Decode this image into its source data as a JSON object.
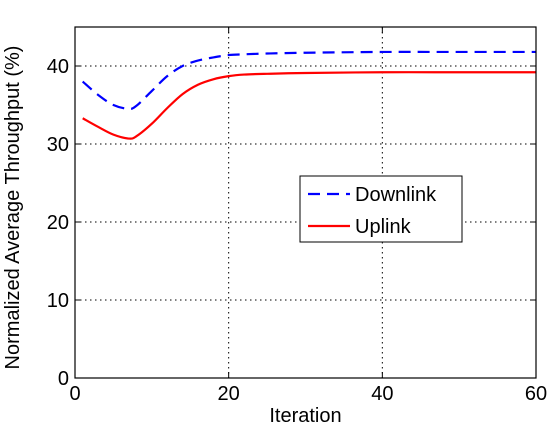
{
  "chart_data": {
    "type": "line",
    "title": "",
    "xlabel": "Iteration",
    "ylabel": "Normalized Average Throughput (%)",
    "xlim": [
      0,
      60
    ],
    "ylim": [
      0,
      45
    ],
    "xticks": [
      0,
      20,
      40,
      60
    ],
    "yticks": [
      0,
      10,
      20,
      30,
      40
    ],
    "grid": true,
    "legend_position": "center-right",
    "series": [
      {
        "name": "Downlink",
        "color": "#0000ff",
        "line_style": "dashed",
        "x": [
          1,
          3,
          5,
          7,
          8,
          10,
          12,
          14,
          16,
          18,
          20,
          22,
          25,
          30,
          40,
          50,
          60
        ],
        "y": [
          38.0,
          36.3,
          35.0,
          34.5,
          34.9,
          36.8,
          38.7,
          40.0,
          40.7,
          41.1,
          41.4,
          41.5,
          41.6,
          41.7,
          41.8,
          41.8,
          41.8
        ]
      },
      {
        "name": "Uplink",
        "color": "#ff0000",
        "line_style": "solid",
        "x": [
          1,
          3,
          5,
          7,
          8,
          10,
          12,
          14,
          16,
          18,
          20,
          22,
          25,
          30,
          40,
          50,
          60
        ],
        "y": [
          33.3,
          32.2,
          31.2,
          30.7,
          31.0,
          32.6,
          34.6,
          36.4,
          37.6,
          38.3,
          38.7,
          38.9,
          39.0,
          39.1,
          39.2,
          39.2,
          39.2
        ]
      }
    ]
  }
}
